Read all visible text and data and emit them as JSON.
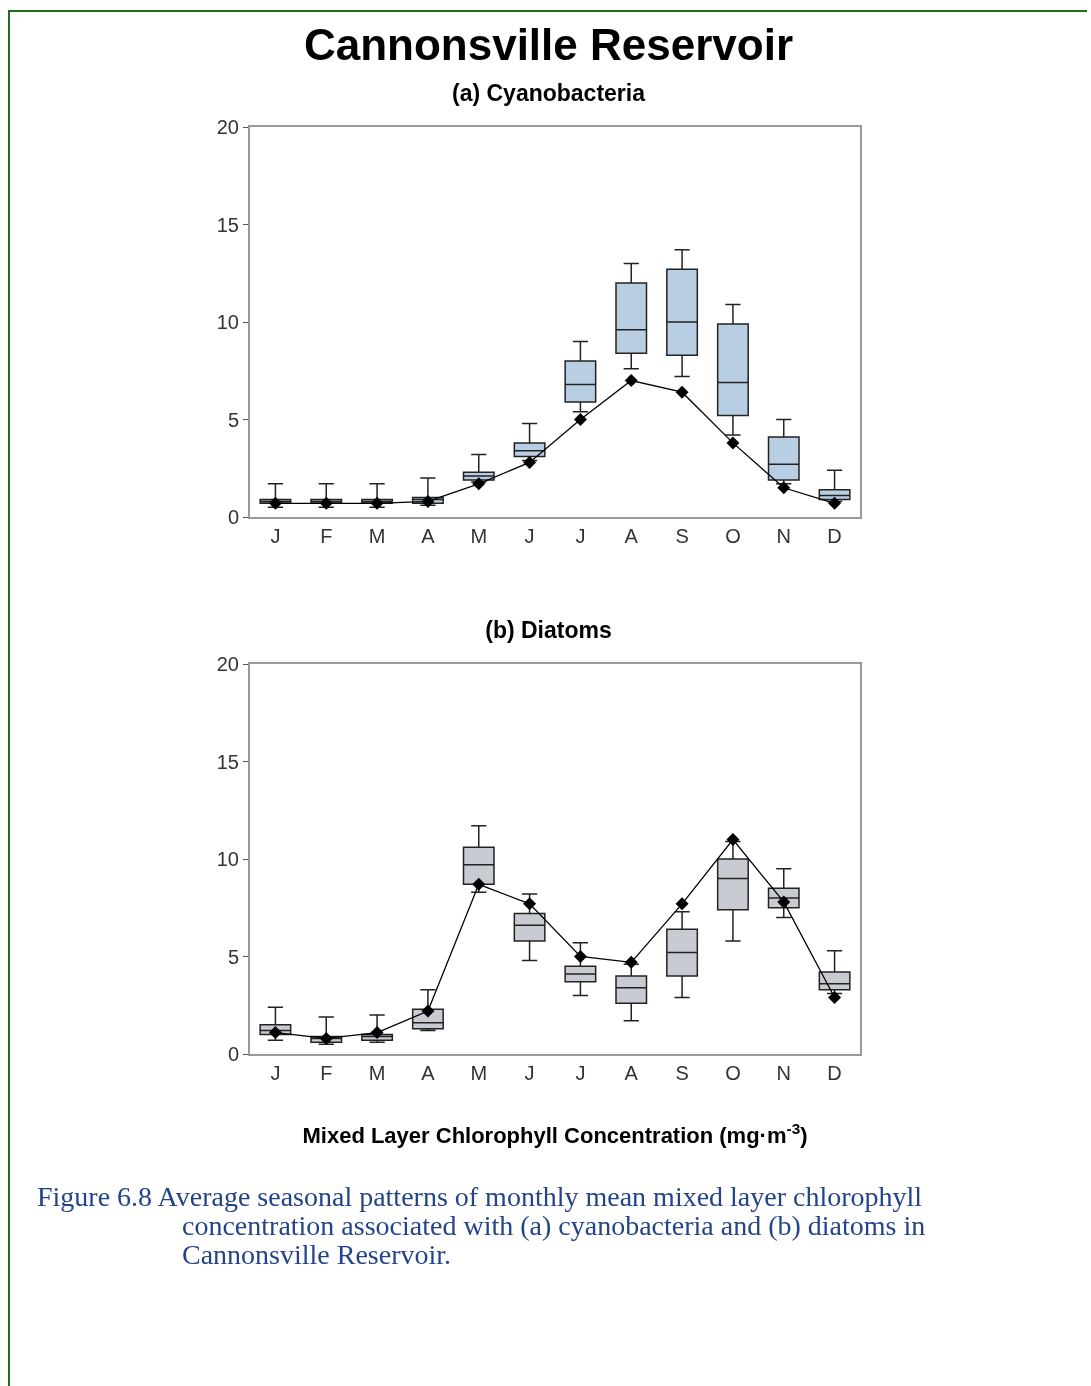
{
  "chart_data": [
    {
      "type": "box",
      "title": "Cannonsville Reservoir",
      "subtitle": "(a) Cyanobacteria",
      "categories": [
        "J",
        "F",
        "M",
        "A",
        "M",
        "J",
        "J",
        "A",
        "S",
        "O",
        "N",
        "D"
      ],
      "ylim": [
        0,
        20
      ],
      "yticks": [
        0,
        5,
        10,
        15,
        20
      ],
      "marker": "diamond",
      "series": [
        {
          "color": "#b8cfe3",
          "boxes": [
            {
              "low": 0.5,
              "q1": 0.7,
              "median": 0.8,
              "q3": 0.9,
              "high": 1.7
            },
            {
              "low": 0.5,
              "q1": 0.7,
              "median": 0.8,
              "q3": 0.9,
              "high": 1.7
            },
            {
              "low": 0.5,
              "q1": 0.7,
              "median": 0.8,
              "q3": 0.9,
              "high": 1.7
            },
            {
              "low": 0.6,
              "q1": 0.7,
              "median": 0.9,
              "q3": 1.0,
              "high": 2.0
            },
            {
              "low": 1.8,
              "q1": 1.9,
              "median": 2.1,
              "q3": 2.3,
              "high": 3.2
            },
            {
              "low": 2.9,
              "q1": 3.1,
              "median": 3.4,
              "q3": 3.8,
              "high": 4.8
            },
            {
              "low": 5.4,
              "q1": 5.9,
              "median": 6.8,
              "q3": 8.0,
              "high": 9.0
            },
            {
              "low": 7.6,
              "q1": 8.4,
              "median": 9.6,
              "q3": 12.0,
              "high": 13.0
            },
            {
              "low": 7.2,
              "q1": 8.3,
              "median": 10.0,
              "q3": 12.7,
              "high": 13.7
            },
            {
              "low": 4.2,
              "q1": 5.2,
              "median": 6.9,
              "q3": 9.9,
              "high": 10.9
            },
            {
              "low": 1.7,
              "q1": 1.9,
              "median": 2.7,
              "q3": 4.1,
              "high": 5.0
            },
            {
              "low": 0.8,
              "q1": 0.9,
              "median": 1.1,
              "q3": 1.4,
              "high": 2.4
            }
          ]
        },
        {
          "type": "line",
          "color": "#000000",
          "values": [
            0.7,
            0.7,
            0.7,
            0.8,
            1.7,
            2.8,
            5.0,
            7.0,
            6.4,
            3.8,
            1.5,
            0.7
          ]
        }
      ]
    },
    {
      "type": "box",
      "title": "(b) Diatoms",
      "xlabel": "Mixed Layer Chlorophyll Concentration (mg·m$^{-3}$)",
      "annotations": [
        "Figure 6.8  Average seasonal patterns of monthly mean mixed layer chlorophyll concentration associated with (a) cyanobacteria and (b) diatoms in Cannonsville Reservoir."
      ],
      "categories": [
        "J",
        "F",
        "M",
        "A",
        "M",
        "J",
        "J",
        "A",
        "S",
        "O",
        "N",
        "D"
      ],
      "ylim": [
        0,
        20
      ],
      "yticks": [
        0,
        5,
        10,
        15,
        20
      ],
      "marker": "diamond",
      "series": [
        {
          "color": "#c9cbd3",
          "boxes": [
            {
              "low": 0.7,
              "q1": 1.0,
              "median": 1.2,
              "q3": 1.5,
              "high": 2.4
            },
            {
              "low": 0.5,
              "q1": 0.6,
              "median": 0.8,
              "q3": 0.9,
              "high": 1.9
            },
            {
              "low": 0.6,
              "q1": 0.7,
              "median": 0.9,
              "q3": 1.0,
              "high": 2.0
            },
            {
              "low": 1.2,
              "q1": 1.3,
              "median": 1.6,
              "q3": 2.3,
              "high": 3.3
            },
            {
              "low": 8.3,
              "q1": 8.7,
              "median": 9.7,
              "q3": 10.6,
              "high": 11.7
            },
            {
              "low": 4.8,
              "q1": 5.8,
              "median": 6.6,
              "q3": 7.2,
              "high": 8.2
            },
            {
              "low": 3.0,
              "q1": 3.7,
              "median": 4.1,
              "q3": 4.5,
              "high": 5.7
            },
            {
              "low": 1.7,
              "q1": 2.6,
              "median": 3.4,
              "q3": 4.0,
              "high": 4.6
            },
            {
              "low": 2.9,
              "q1": 4.0,
              "median": 5.2,
              "q3": 6.4,
              "high": 7.3
            },
            {
              "low": 5.8,
              "q1": 7.4,
              "median": 9.0,
              "q3": 10.0,
              "high": 10.9
            },
            {
              "low": 7.0,
              "q1": 7.5,
              "median": 8.0,
              "q3": 8.5,
              "high": 9.5
            },
            {
              "low": 3.1,
              "q1": 3.3,
              "median": 3.6,
              "q3": 4.2,
              "high": 5.3
            }
          ]
        },
        {
          "type": "line",
          "color": "#000000",
          "values": [
            1.1,
            0.8,
            1.1,
            2.2,
            8.7,
            7.7,
            5.0,
            4.7,
            7.7,
            11.0,
            7.8,
            2.9
          ]
        }
      ]
    }
  ]
}
